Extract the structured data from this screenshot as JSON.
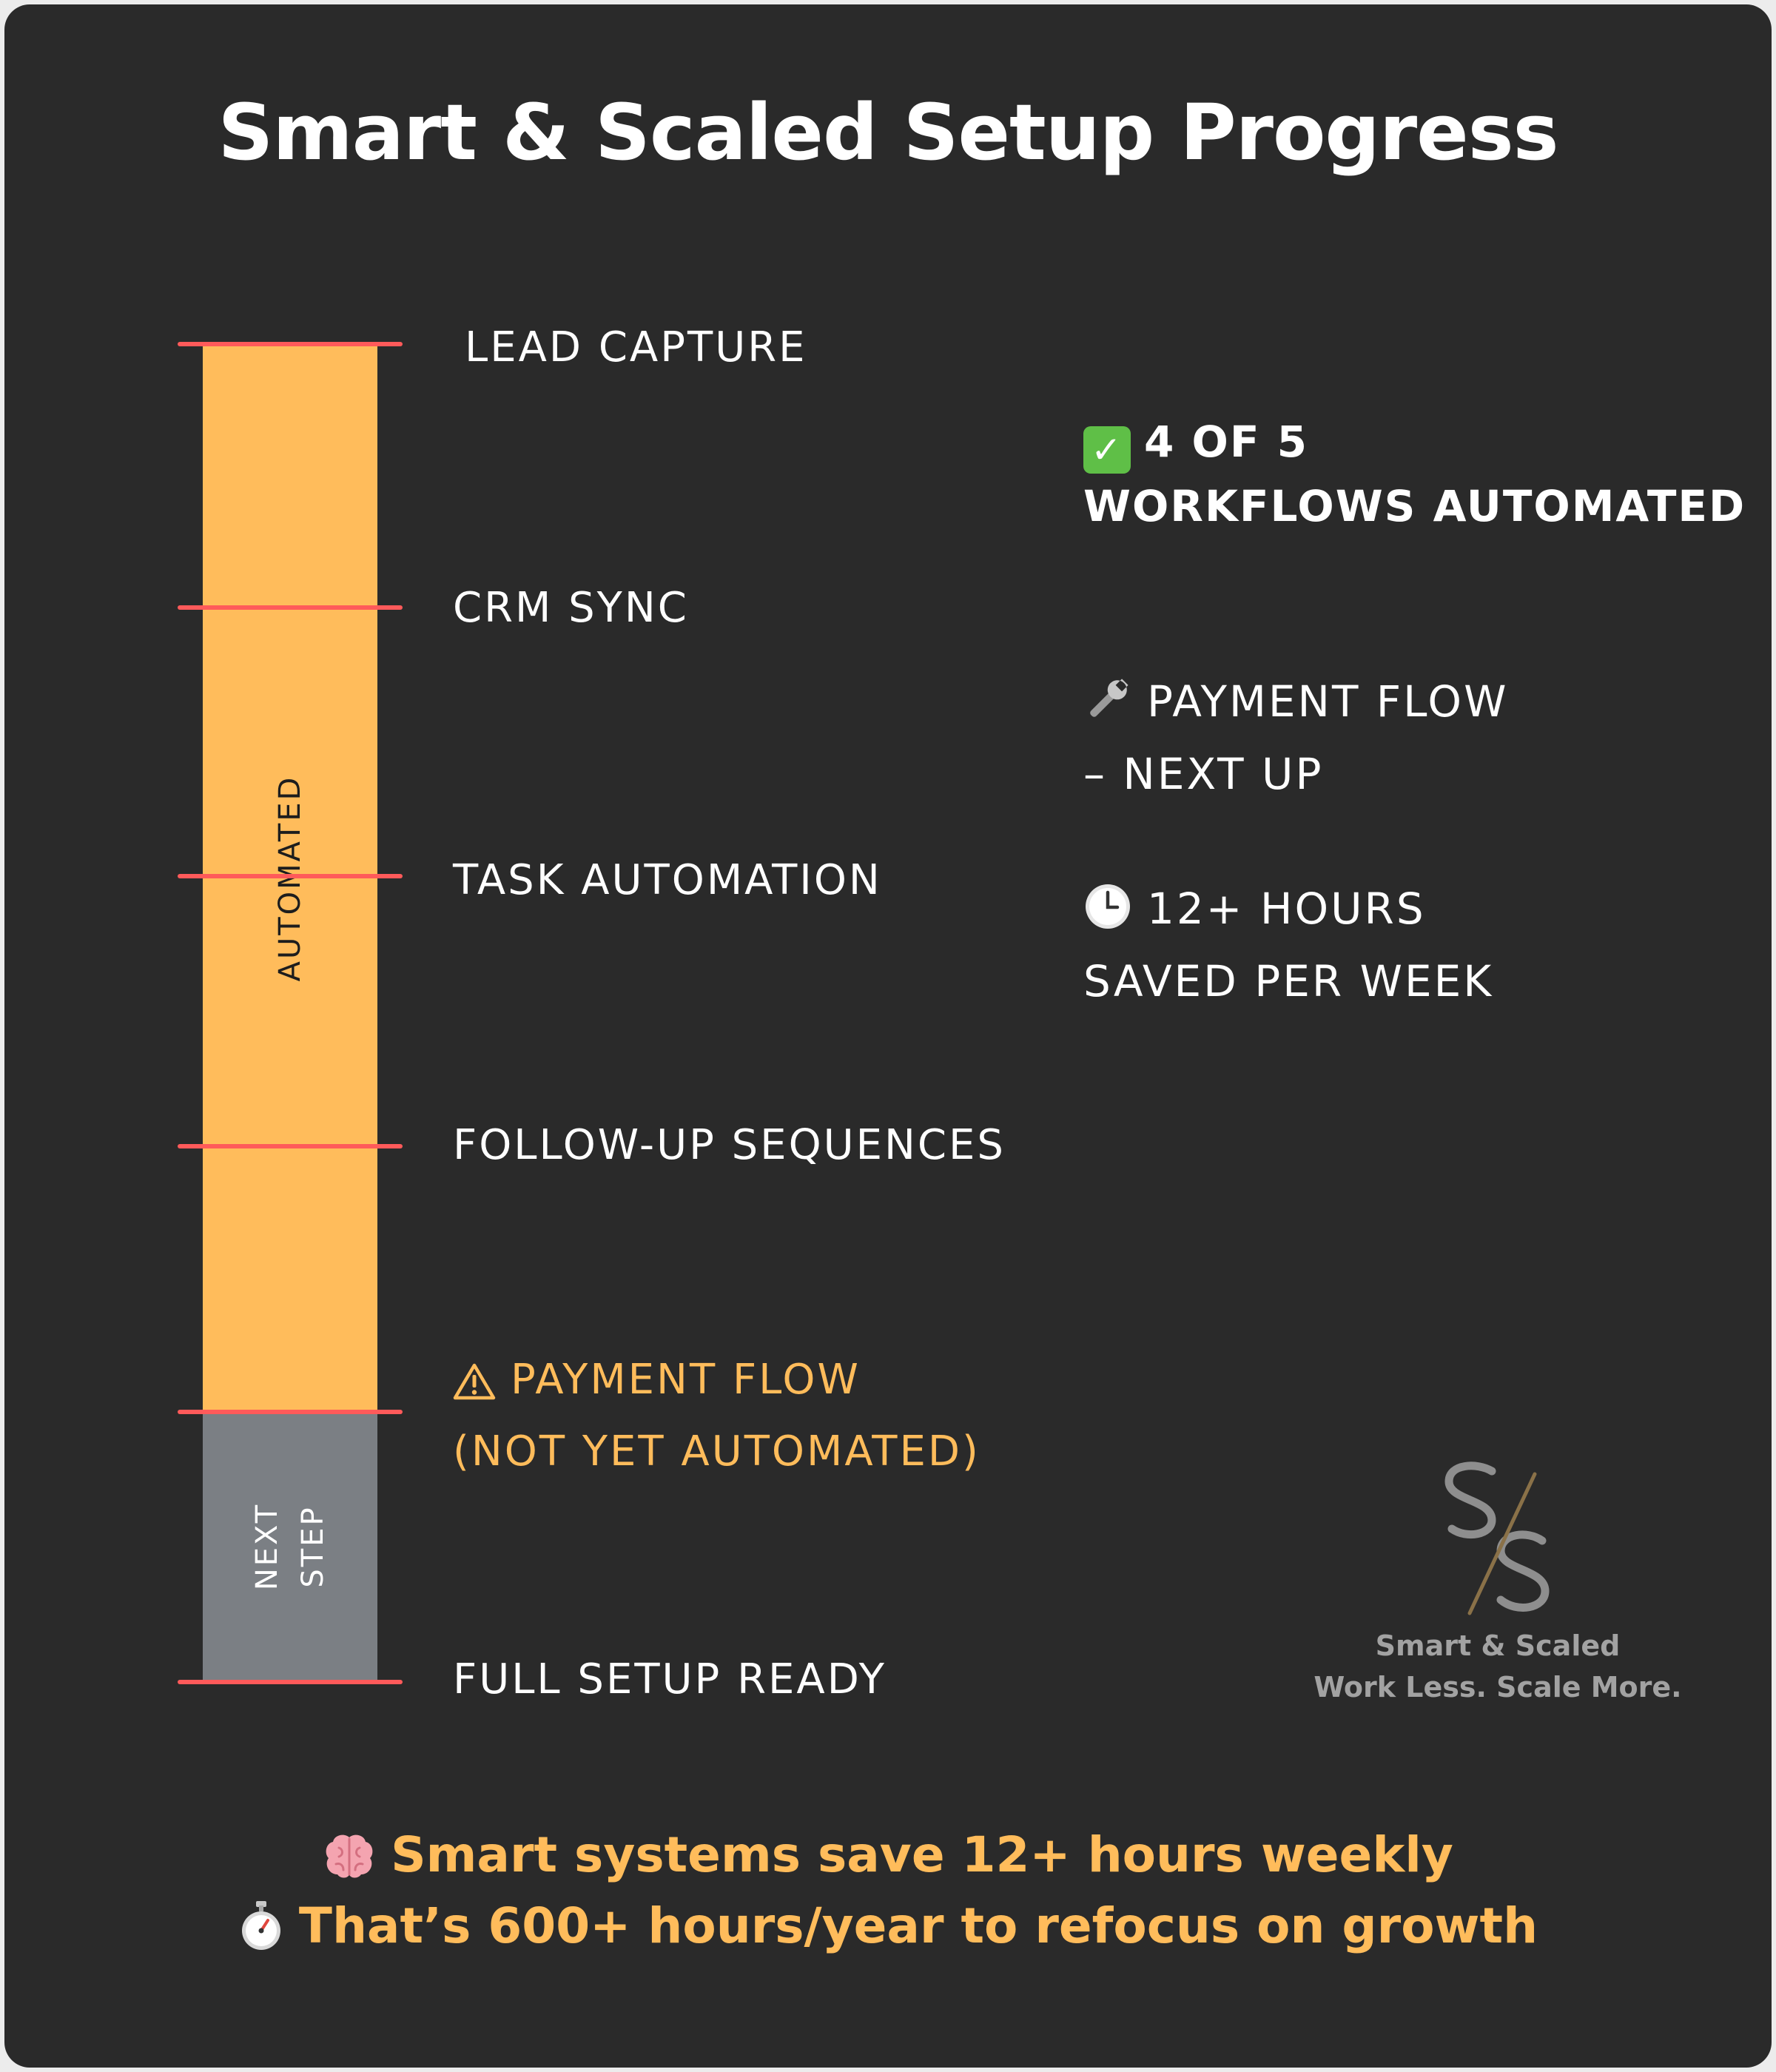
{
  "title": "Smart & Scaled Setup Progress",
  "progress": {
    "completed": 4,
    "total": 5,
    "segments": [
      {
        "label": "AUTOMATED",
        "color": "#ffbc5b"
      },
      {
        "label_lines": [
          "NEXT",
          "STEP"
        ],
        "color": "#7b7f84"
      }
    ],
    "tick_color": "#ff5a5a",
    "milestones": [
      {
        "lines": [
          "LEAD CAPTURE"
        ]
      },
      {
        "lines": [
          "CRM SYNC"
        ]
      },
      {
        "lines": [
          "TASK AUTOMATION"
        ]
      },
      {
        "lines": [
          "FOLLOW-UP SEQUENCES"
        ]
      },
      {
        "lines": [
          "PAYMENT FLOW",
          "(NOT YET AUTOMATED)"
        ],
        "icon": "warning-icon",
        "status": "pending"
      },
      {
        "lines": [
          "FULL SETUP READY"
        ]
      }
    ]
  },
  "stats": {
    "count_line1": "4 OF 5",
    "count_line2": "WORKFLOWS AUTOMATED",
    "count_icon": "check-mark-icon",
    "next_line1": "PAYMENT FLOW",
    "next_line2": "– NEXT UP",
    "next_icon": "wrench-icon",
    "hours_line1": "12+ HOURS",
    "hours_line2": "SAVED PER WEEK",
    "hours_icon": "clock-icon"
  },
  "logo": {
    "monogram": "S/S",
    "name": "Smart & Scaled",
    "tagline": "Work Less. Scale More."
  },
  "footer": {
    "line1": "Smart systems save 12+ hours weekly",
    "line1_icon": "brain-icon",
    "line2": "That’s 600+ hours/year to refocus on growth",
    "line2_icon": "stopwatch-icon"
  },
  "colors": {
    "background": "#2a2a2a",
    "accent": "#ffbc5b",
    "pending": "#7b7f84",
    "marker": "#ff5a5a",
    "check": "#5fbf47"
  }
}
